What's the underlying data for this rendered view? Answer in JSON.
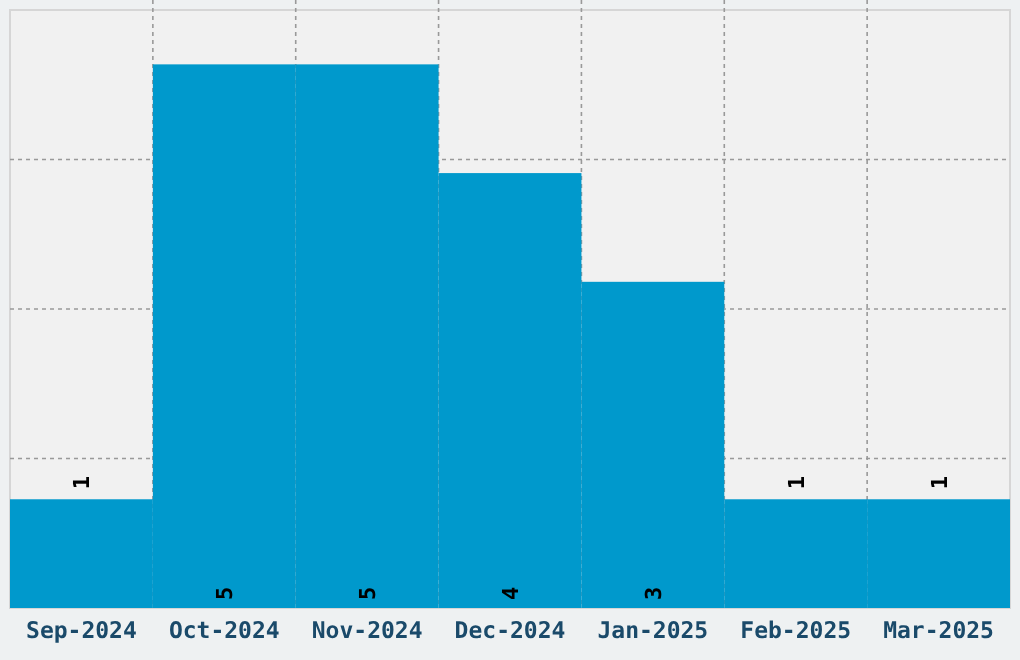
{
  "chart_data": {
    "type": "bar",
    "categories": [
      "Sep-2024",
      "Oct-2024",
      "Nov-2024",
      "Dec-2024",
      "Jan-2025",
      "Feb-2025",
      "Mar-2025"
    ],
    "values": [
      1,
      5,
      5,
      4,
      3,
      1,
      1
    ],
    "color": "#0099cc",
    "data_labels": true,
    "ylim": [
      0,
      5.5
    ],
    "yticks": [
      {
        "value": 1.375,
        "label": null
      },
      {
        "value": 2.75,
        "label": null
      },
      {
        "value": 4.125,
        "label": null
      }
    ],
    "tick_labels": "x",
    "grid": true
  }
}
